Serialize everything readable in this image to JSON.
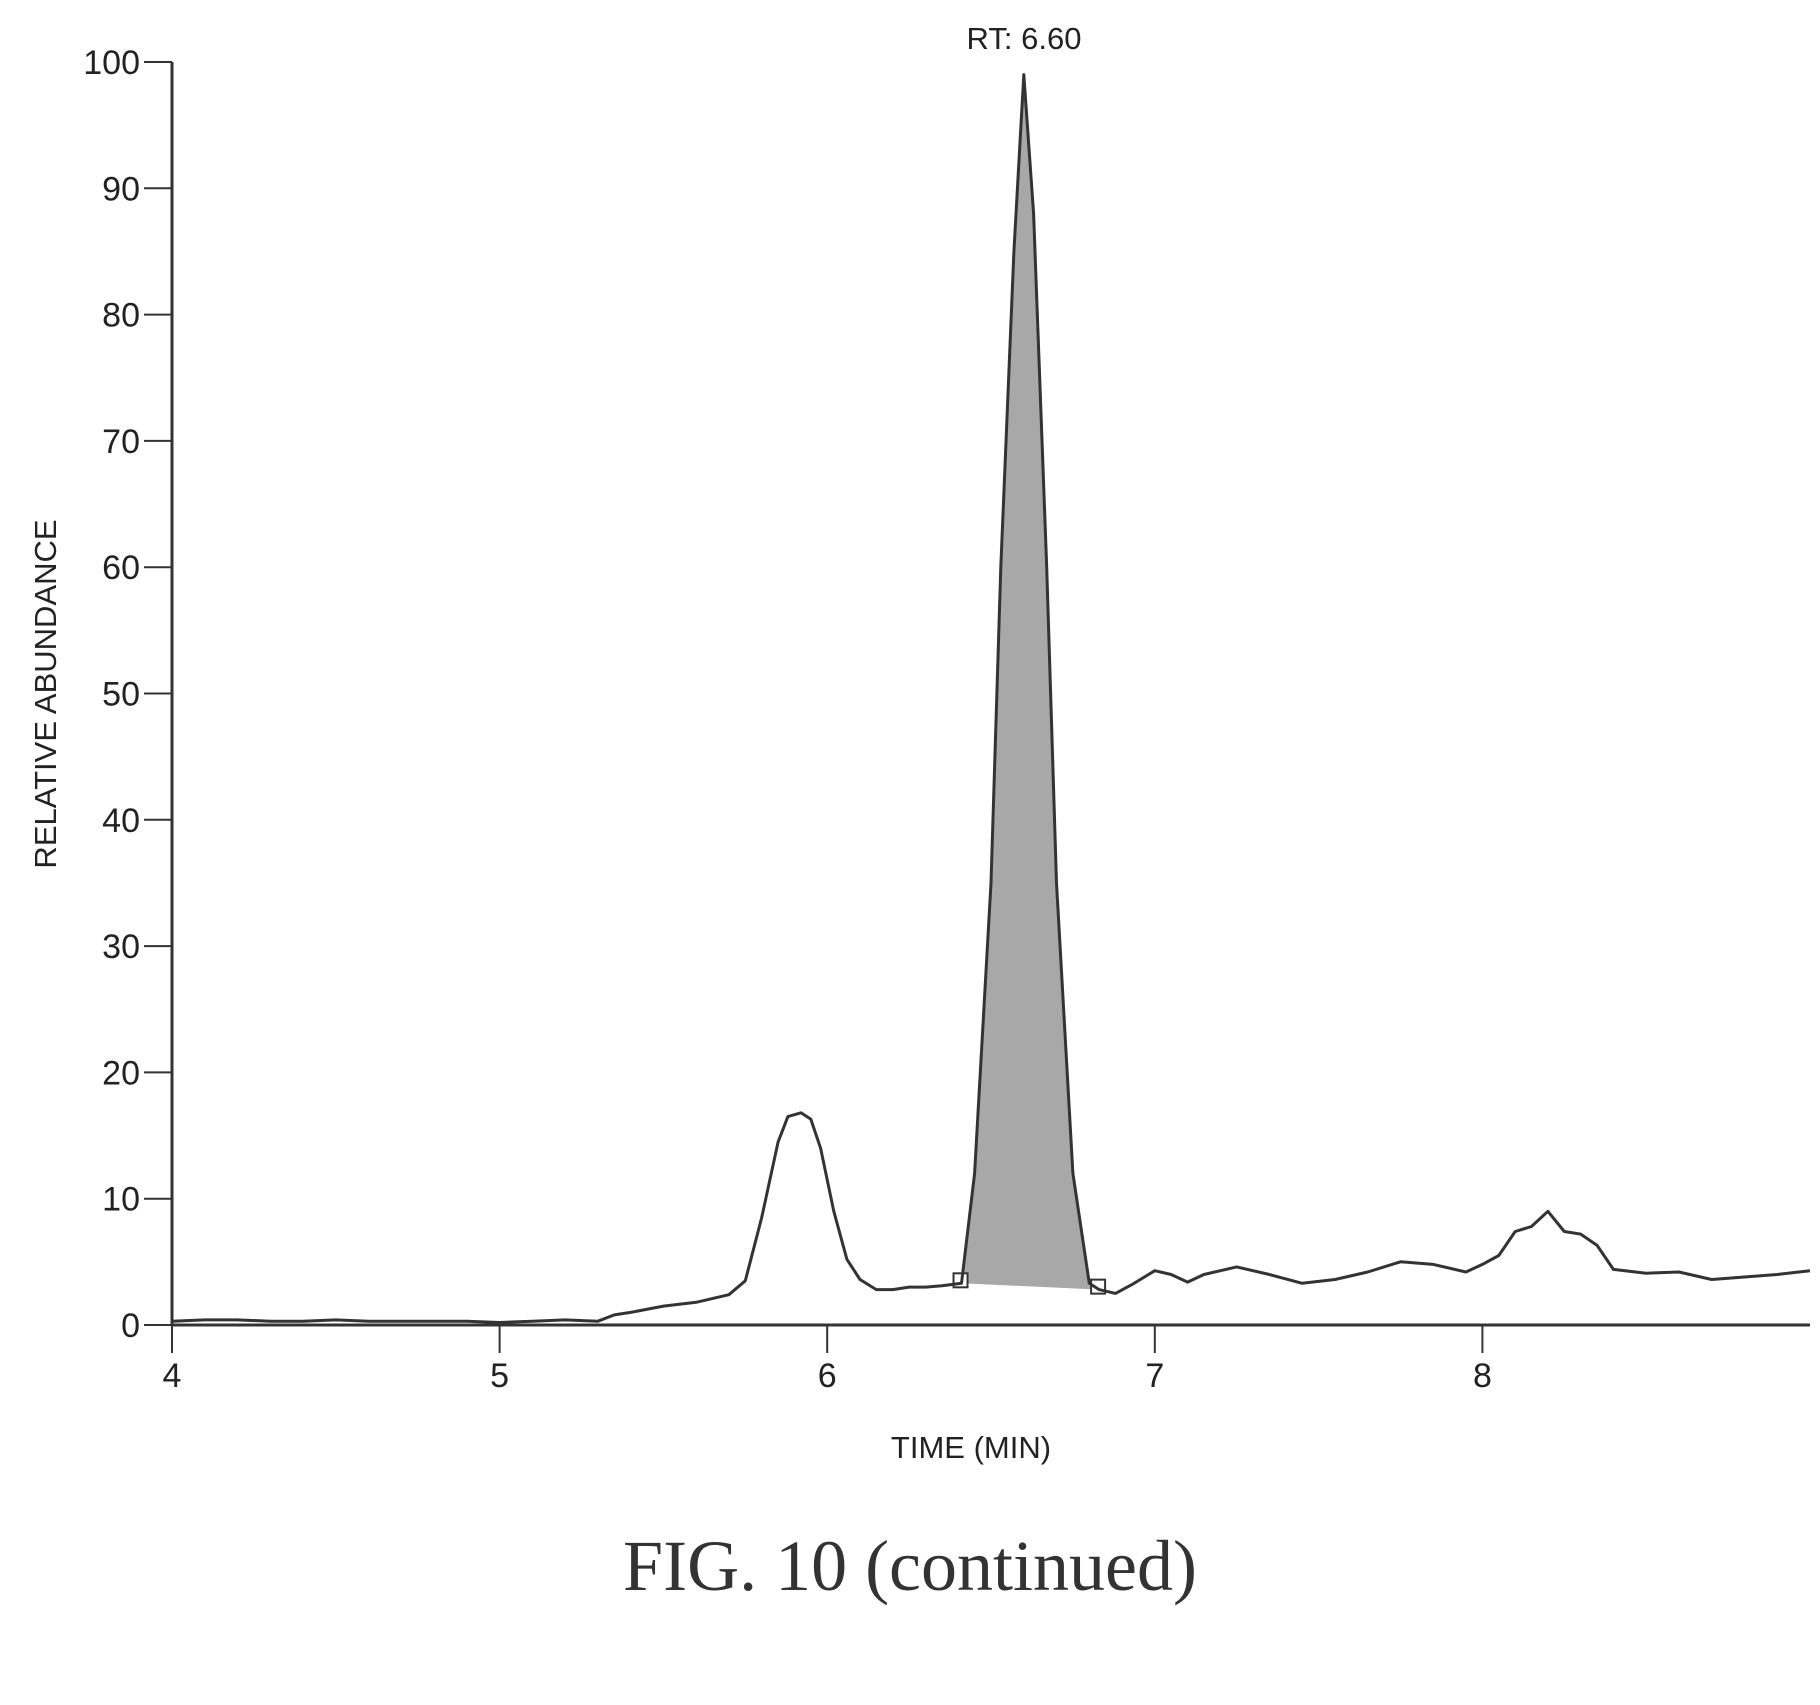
{
  "caption": "FIG. 10 (continued)",
  "chart_data": {
    "type": "line",
    "xlabel": "TIME (MIN)",
    "ylabel": "RELATIVE ABUNDANCE",
    "xlim": [
      4,
      9
    ],
    "ylim": [
      0,
      100
    ],
    "x_ticks": [
      "4",
      "5",
      "6",
      "7",
      "8"
    ],
    "y_ticks": [
      "0",
      "10",
      "20",
      "30",
      "40",
      "50",
      "60",
      "70",
      "80",
      "90",
      "100"
    ],
    "grid": false,
    "annotations": [
      {
        "text": "RT: 6.60",
        "x": 6.6,
        "y": 100
      }
    ],
    "shaded_peak": {
      "x_start": 6.41,
      "x_end": 6.83,
      "apex_x": 6.6,
      "apex_y": 99,
      "fill": "#a8a8a8"
    },
    "series": [
      {
        "x": [
          4.0,
          4.1,
          4.2,
          4.3,
          4.4,
          4.5,
          4.6,
          4.7,
          4.8,
          4.9,
          5.0,
          5.1,
          5.2,
          5.3,
          5.35,
          5.4,
          5.5,
          5.6,
          5.7,
          5.75,
          5.8,
          5.85,
          5.88,
          5.92,
          5.95,
          5.98,
          6.02,
          6.06,
          6.1,
          6.15,
          6.2,
          6.25,
          6.3,
          6.35,
          6.41,
          6.45,
          6.5,
          6.53,
          6.57,
          6.6,
          6.63,
          6.67,
          6.7,
          6.75,
          6.8,
          6.83,
          6.88,
          6.93,
          7.0,
          7.05,
          7.1,
          7.15,
          7.25,
          7.35,
          7.45,
          7.55,
          7.65,
          7.75,
          7.85,
          7.95,
          8.0,
          8.05,
          8.1,
          8.15,
          8.2,
          8.25,
          8.3,
          8.35,
          8.4,
          8.5,
          8.6,
          8.7,
          8.8,
          8.9,
          9.0
        ],
        "y": [
          0.3,
          0.4,
          0.4,
          0.3,
          0.3,
          0.4,
          0.3,
          0.3,
          0.3,
          0.3,
          0.2,
          0.3,
          0.4,
          0.3,
          0.8,
          1.0,
          1.5,
          1.8,
          2.4,
          3.5,
          8.5,
          14.5,
          16.5,
          16.8,
          16.3,
          14.0,
          9.0,
          5.2,
          3.6,
          2.8,
          2.8,
          3.0,
          3.0,
          3.1,
          3.3,
          12.0,
          35.0,
          60.0,
          85.0,
          99.0,
          88.0,
          60.0,
          35.0,
          12.0,
          3.3,
          2.8,
          2.5,
          3.2,
          4.3,
          4.0,
          3.4,
          4.0,
          4.6,
          4.0,
          3.3,
          3.6,
          4.2,
          5.0,
          4.8,
          4.2,
          4.8,
          5.5,
          7.4,
          7.8,
          9.0,
          7.4,
          7.2,
          6.3,
          4.4,
          4.1,
          4.2,
          3.6,
          3.8,
          4.0,
          4.3
        ]
      }
    ]
  }
}
